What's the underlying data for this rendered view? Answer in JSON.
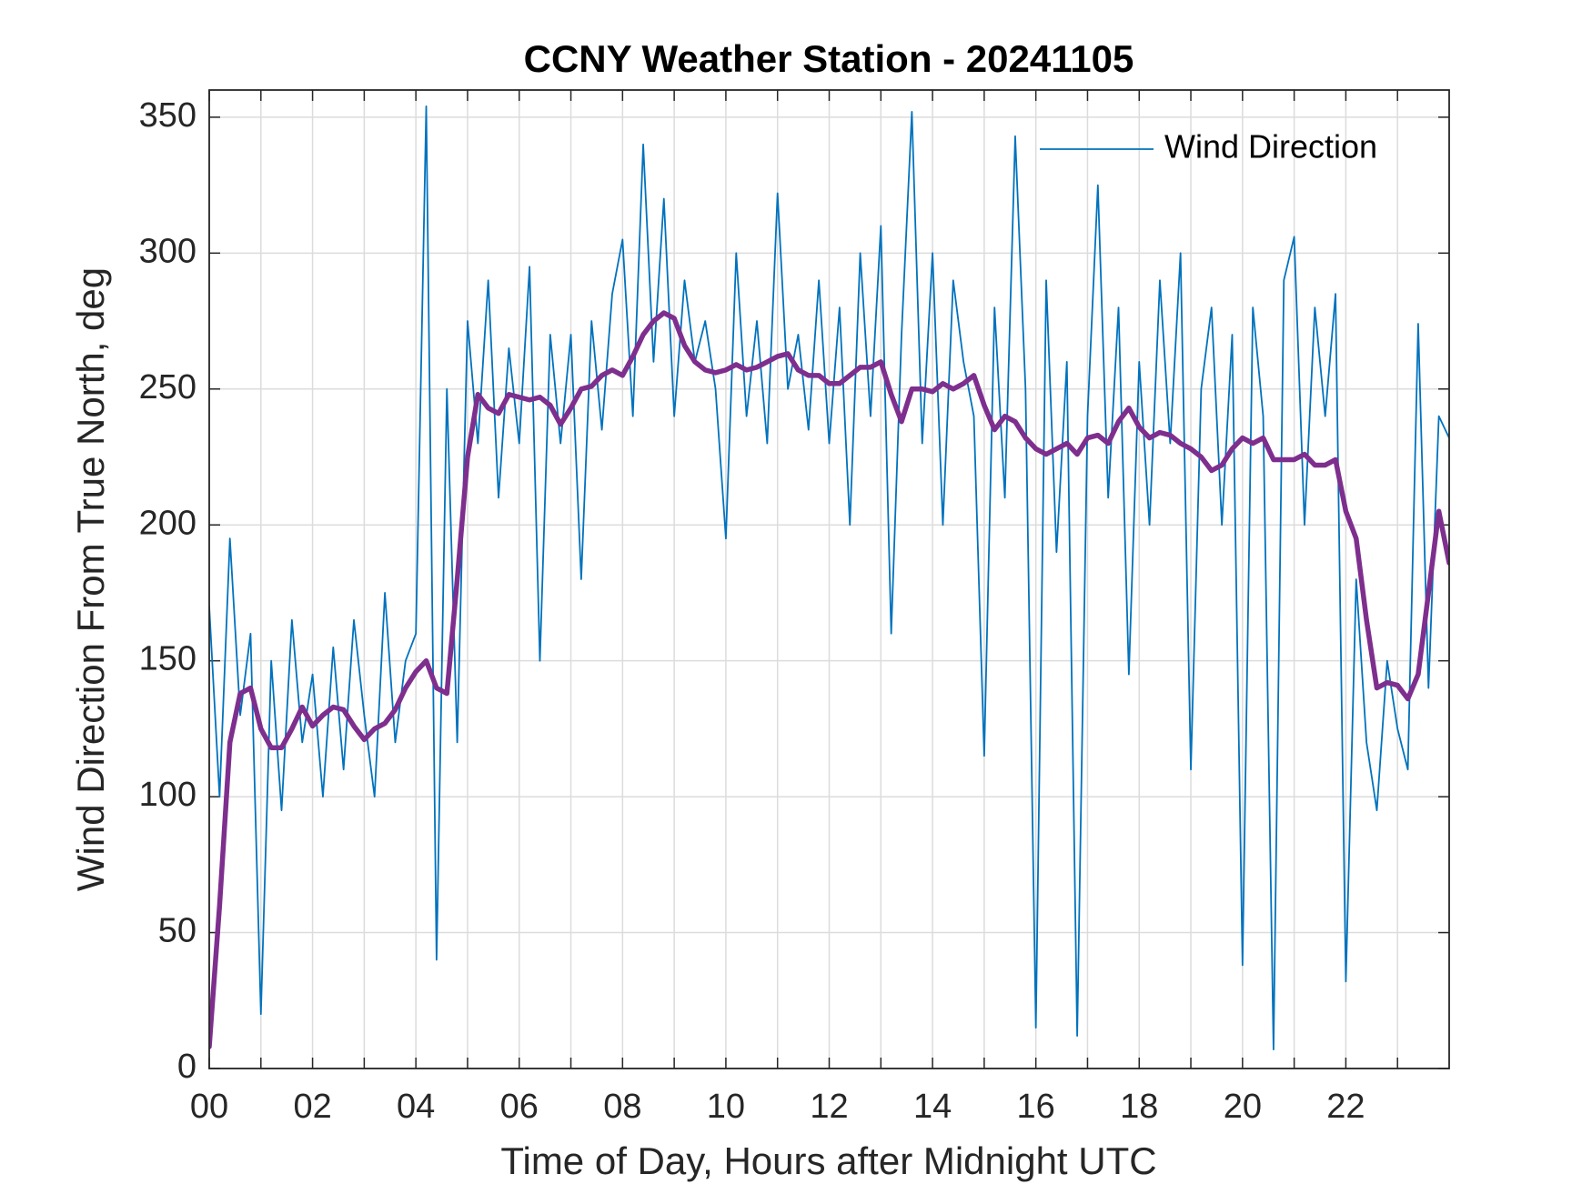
{
  "chart_data": {
    "type": "line",
    "title": "CCNY Weather Station - 20241105",
    "xlabel": "Time of Day, Hours after Midnight UTC",
    "ylabel": "Wind Direction From True North, deg",
    "x": [
      0,
      0.2,
      0.4,
      0.6,
      0.8,
      1,
      1.2,
      1.4,
      1.6,
      1.8,
      2,
      2.2,
      2.4,
      2.6,
      2.8,
      3,
      3.2,
      3.4,
      3.6,
      3.8,
      4,
      4.2,
      4.4,
      4.6,
      4.8,
      5,
      5.2,
      5.4,
      5.6,
      5.8,
      6,
      6.2,
      6.4,
      6.6,
      6.8,
      7,
      7.2,
      7.4,
      7.6,
      7.8,
      8,
      8.2,
      8.4,
      8.6,
      8.8,
      9,
      9.2,
      9.4,
      9.6,
      9.8,
      10,
      10.2,
      10.4,
      10.6,
      10.8,
      11,
      11.2,
      11.4,
      11.6,
      11.8,
      12,
      12.2,
      12.4,
      12.6,
      12.8,
      13,
      13.2,
      13.4,
      13.6,
      13.8,
      14,
      14.2,
      14.4,
      14.6,
      14.8,
      15,
      15.2,
      15.4,
      15.6,
      15.8,
      16,
      16.2,
      16.4,
      16.6,
      16.8,
      17,
      17.2,
      17.4,
      17.6,
      17.8,
      18,
      18.2,
      18.4,
      18.6,
      18.8,
      19,
      19.2,
      19.4,
      19.6,
      19.8,
      20,
      20.2,
      20.4,
      20.6,
      20.8,
      21,
      21.2,
      21.4,
      21.6,
      21.8,
      22,
      22.2,
      22.4,
      22.6,
      22.8,
      23,
      23.2,
      23.4,
      23.6,
      23.8,
      24
    ],
    "series": [
      {
        "name": "Wind Direction",
        "color": "#0072BD",
        "values": [
          170,
          100,
          195,
          130,
          160,
          20,
          150,
          95,
          165,
          120,
          145,
          100,
          155,
          110,
          165,
          130,
          100,
          175,
          120,
          150,
          160,
          354,
          40,
          250,
          120,
          275,
          230,
          290,
          210,
          265,
          230,
          295,
          150,
          270,
          230,
          270,
          180,
          275,
          235,
          285,
          305,
          240,
          340,
          260,
          320,
          240,
          290,
          260,
          275,
          250,
          195,
          300,
          240,
          275,
          230,
          322,
          250,
          270,
          235,
          290,
          230,
          280,
          200,
          300,
          240,
          310,
          160,
          270,
          352,
          230,
          300,
          200,
          290,
          260,
          240,
          115,
          280,
          210,
          343,
          250,
          15,
          290,
          190,
          260,
          12,
          240,
          325,
          210,
          280,
          145,
          260,
          200,
          290,
          230,
          300,
          110,
          250,
          280,
          200,
          270,
          38,
          280,
          240,
          7,
          290,
          306,
          200,
          280,
          240,
          285,
          32,
          180,
          120,
          95,
          150,
          125,
          110,
          274,
          140,
          240,
          232
        ]
      },
      {
        "color": "#7E2F8E",
        "values": [
          8,
          60,
          120,
          138,
          140,
          125,
          118,
          118,
          125,
          133,
          126,
          130,
          133,
          132,
          126,
          121,
          125,
          127,
          132,
          140,
          146,
          150,
          140,
          138,
          180,
          225,
          248,
          243,
          241,
          248,
          247,
          246,
          247,
          244,
          237,
          243,
          250,
          251,
          255,
          257,
          255,
          262,
          270,
          275,
          278,
          276,
          266,
          260,
          257,
          256,
          257,
          259,
          257,
          258,
          260,
          262,
          263,
          257,
          255,
          255,
          252,
          252,
          255,
          258,
          258,
          260,
          248,
          238,
          250,
          250,
          249,
          252,
          250,
          252,
          255,
          244,
          235,
          240,
          238,
          232,
          228,
          226,
          228,
          230,
          226,
          232,
          233,
          230,
          238,
          243,
          236,
          232,
          234,
          233,
          230,
          228,
          225,
          220,
          222,
          228,
          232,
          230,
          232,
          224,
          224,
          224,
          226,
          222,
          222,
          224,
          205,
          195,
          165,
          140,
          142,
          141,
          136,
          145,
          175,
          205,
          186
        ]
      }
    ],
    "xlim": [
      0,
      24
    ],
    "xticks": [
      {
        "value": 0,
        "label": "00"
      },
      {
        "value": 2,
        "label": "02"
      },
      {
        "value": 4,
        "label": "04"
      },
      {
        "value": 6,
        "label": "06"
      },
      {
        "value": 8,
        "label": "08"
      },
      {
        "value": 10,
        "label": "10"
      },
      {
        "value": 12,
        "label": "12"
      },
      {
        "value": 14,
        "label": "14"
      },
      {
        "value": 16,
        "label": "16"
      },
      {
        "value": 18,
        "label": "18"
      },
      {
        "value": 20,
        "label": "20"
      },
      {
        "value": 22,
        "label": "22"
      }
    ],
    "xminorticks": [
      1,
      3,
      5,
      7,
      9,
      11,
      13,
      15,
      17,
      19,
      21,
      23
    ],
    "ylim": [
      0,
      360
    ],
    "yticks": [
      0,
      50,
      100,
      150,
      200,
      250,
      300,
      350
    ],
    "grid": true,
    "legend": "northeast"
  }
}
